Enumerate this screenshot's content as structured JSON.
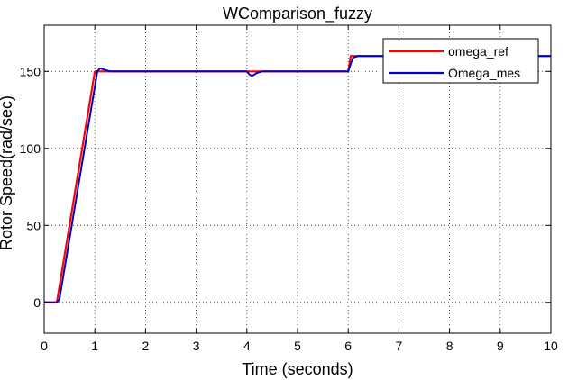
{
  "chart_data": {
    "type": "line",
    "title": "WComparison_fuzzy",
    "xlabel": "Time (seconds)",
    "ylabel": "Rotor Speed(rad/sec)",
    "xlim": [
      0,
      10
    ],
    "ylim": [
      -20,
      180
    ],
    "xticks": [
      0,
      1,
      2,
      3,
      4,
      5,
      6,
      7,
      8,
      9,
      10
    ],
    "yticks": [
      0,
      50,
      100,
      150
    ],
    "grid": true,
    "legend_position": "top-right",
    "series": [
      {
        "name": "omega_ref",
        "color": "#ff0000",
        "x": [
          0,
          0.2,
          0.25,
          1.0,
          1.05,
          1.2,
          4.0,
          6.0,
          6.05,
          6.1,
          10
        ],
        "y": [
          0,
          0,
          0,
          150,
          150,
          150,
          150,
          150,
          160,
          160,
          160
        ]
      },
      {
        "name": "Omega_mes",
        "color": "#0000c8",
        "x": [
          0,
          0.25,
          0.3,
          1.0,
          1.05,
          1.1,
          1.2,
          1.3,
          1.5,
          4.0,
          4.05,
          4.1,
          4.2,
          4.3,
          6.0,
          6.05,
          6.1,
          6.2,
          10
        ],
        "y": [
          0,
          0,
          2,
          140,
          150,
          152,
          151,
          150,
          150,
          150,
          148,
          147,
          149,
          150,
          150,
          155,
          159,
          160,
          160
        ]
      }
    ]
  }
}
